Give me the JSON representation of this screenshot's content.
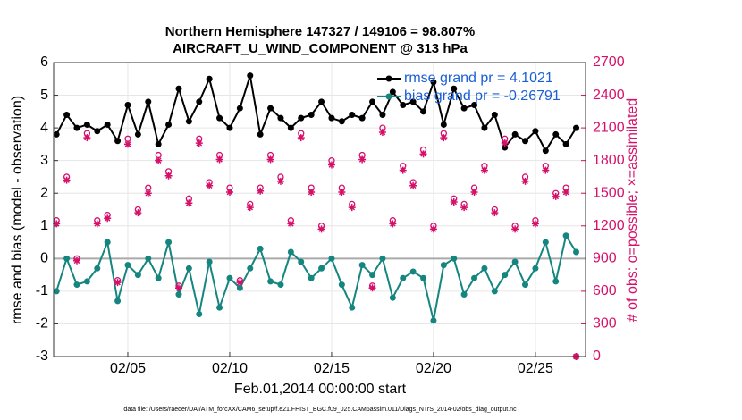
{
  "chart_data": {
    "type": "line",
    "title": "Northern Hemisphere 147327 / 149106 = 98.807%",
    "subtitle": "AIRCRAFT_U_WIND_COMPONENT @ 313 hPa",
    "xlabel": "Feb.01,2014 00:00:00 start",
    "ylabel": "rmse and bias (model - observation)",
    "y2label": "# of obs: o=possible; ×=assimilated",
    "footnote": "data file: /Users/raeder/DAI/ATM_forcXX/CAM6_setup/f.e21.FHIST_BGC.f09_025.CAM6assim.011/Diags_NTrS_2014-02/obs_diag_output.nc",
    "xlim": [
      1.36,
      27.46
    ],
    "xticks": [
      {
        "value": 5,
        "label": "02/05"
      },
      {
        "value": 10,
        "label": "02/10"
      },
      {
        "value": 15,
        "label": "02/15"
      },
      {
        "value": 20,
        "label": "02/20"
      },
      {
        "value": 25,
        "label": "02/25"
      }
    ],
    "ylim": [
      -3,
      6
    ],
    "yticks": [
      -3,
      -2,
      -1,
      0,
      1,
      2,
      3,
      4,
      5,
      6
    ],
    "y2lim": [
      0,
      2700
    ],
    "y2ticks": [
      0,
      300,
      600,
      900,
      1200,
      1500,
      1800,
      2100,
      2400,
      2700
    ],
    "grid": true,
    "legend": "upper right",
    "x": [
      1.5,
      2,
      2.5,
      3,
      3.5,
      4,
      4.5,
      5,
      5.5,
      6,
      6.5,
      7,
      7.5,
      8,
      8.5,
      9,
      9.5,
      10,
      10.5,
      11,
      11.5,
      12,
      12.5,
      13,
      13.5,
      14,
      14.5,
      15,
      15.5,
      16,
      16.5,
      17,
      17.5,
      18,
      18.5,
      19,
      19.5,
      20,
      20.5,
      21,
      21.5,
      22,
      22.5,
      23,
      23.5,
      24,
      24.5,
      25,
      25.5,
      26,
      26.5,
      27
    ],
    "series": [
      {
        "name": "rmse grand pr = 4.1021",
        "color": "#000000",
        "marker": "dot",
        "values": [
          3.8,
          4.4,
          4.0,
          4.1,
          3.9,
          4.1,
          3.6,
          4.7,
          3.8,
          4.8,
          3.5,
          4.1,
          5.2,
          4.2,
          4.8,
          5.5,
          4.3,
          4.0,
          4.6,
          5.6,
          3.8,
          4.6,
          4.3,
          4.0,
          4.3,
          4.4,
          4.8,
          4.3,
          4.2,
          4.4,
          4.3,
          4.8,
          4.4,
          5.1,
          4.7,
          4.8,
          4.5,
          5.4,
          4.1,
          5.2,
          4.6,
          4.7,
          4.0,
          4.4,
          3.4,
          3.8,
          3.6,
          3.9,
          3.3,
          3.8,
          3.5,
          4.0
        ]
      },
      {
        "name": "bias grand pr = -0.26791",
        "color": "#14857f",
        "marker": "dot",
        "values": [
          -1.0,
          0.0,
          -0.8,
          -0.7,
          -0.3,
          0.5,
          -1.3,
          -0.2,
          -0.5,
          0.0,
          -0.6,
          0.5,
          -1.1,
          -0.3,
          -1.7,
          -0.1,
          -1.5,
          -0.6,
          -0.9,
          -0.3,
          0.3,
          -0.7,
          -0.8,
          0.2,
          -0.1,
          -0.6,
          -0.3,
          0.0,
          -0.8,
          -1.5,
          -0.2,
          -0.5,
          0.0,
          -1.2,
          -0.6,
          -0.4,
          -0.6,
          -1.9,
          -0.2,
          0.0,
          -1.1,
          -0.6,
          -0.3,
          -1.0,
          -0.5,
          -0.1,
          -0.8,
          -0.3,
          0.5,
          -0.7,
          0.7,
          0.2
        ]
      },
      {
        "color": "#d6106a",
        "axis": "y2",
        "marker": "circle",
        "values": [
          1250,
          1650,
          900,
          2050,
          1250,
          1300,
          700,
          2000,
          1350,
          1550,
          1850,
          1700,
          650,
          1450,
          2000,
          1600,
          1850,
          1550,
          700,
          1400,
          1550,
          1850,
          1650,
          1250,
          2050,
          1550,
          1200,
          1800,
          1550,
          1400,
          1850,
          650,
          2100,
          1250,
          1750,
          1600,
          1900,
          1200,
          2050,
          1450,
          1400,
          1550,
          1750,
          1350,
          2000,
          1200,
          1650,
          1250,
          1750,
          1500,
          1550,
          0
        ]
      },
      {
        "color": "#d6106a",
        "axis": "y2",
        "marker": "asterisk",
        "values": [
          1220,
          1620,
          880,
          2010,
          1220,
          1270,
          680,
          1950,
          1320,
          1500,
          1800,
          1660,
          630,
          1410,
          1960,
          1570,
          1810,
          1510,
          680,
          1370,
          1520,
          1810,
          1610,
          1220,
          2010,
          1510,
          1170,
          1760,
          1510,
          1370,
          1810,
          630,
          2060,
          1220,
          1710,
          1570,
          1860,
          1170,
          2010,
          1420,
          1370,
          1510,
          1710,
          1320,
          1960,
          1170,
          1610,
          1220,
          1710,
          1470,
          1510,
          0
        ]
      }
    ]
  }
}
